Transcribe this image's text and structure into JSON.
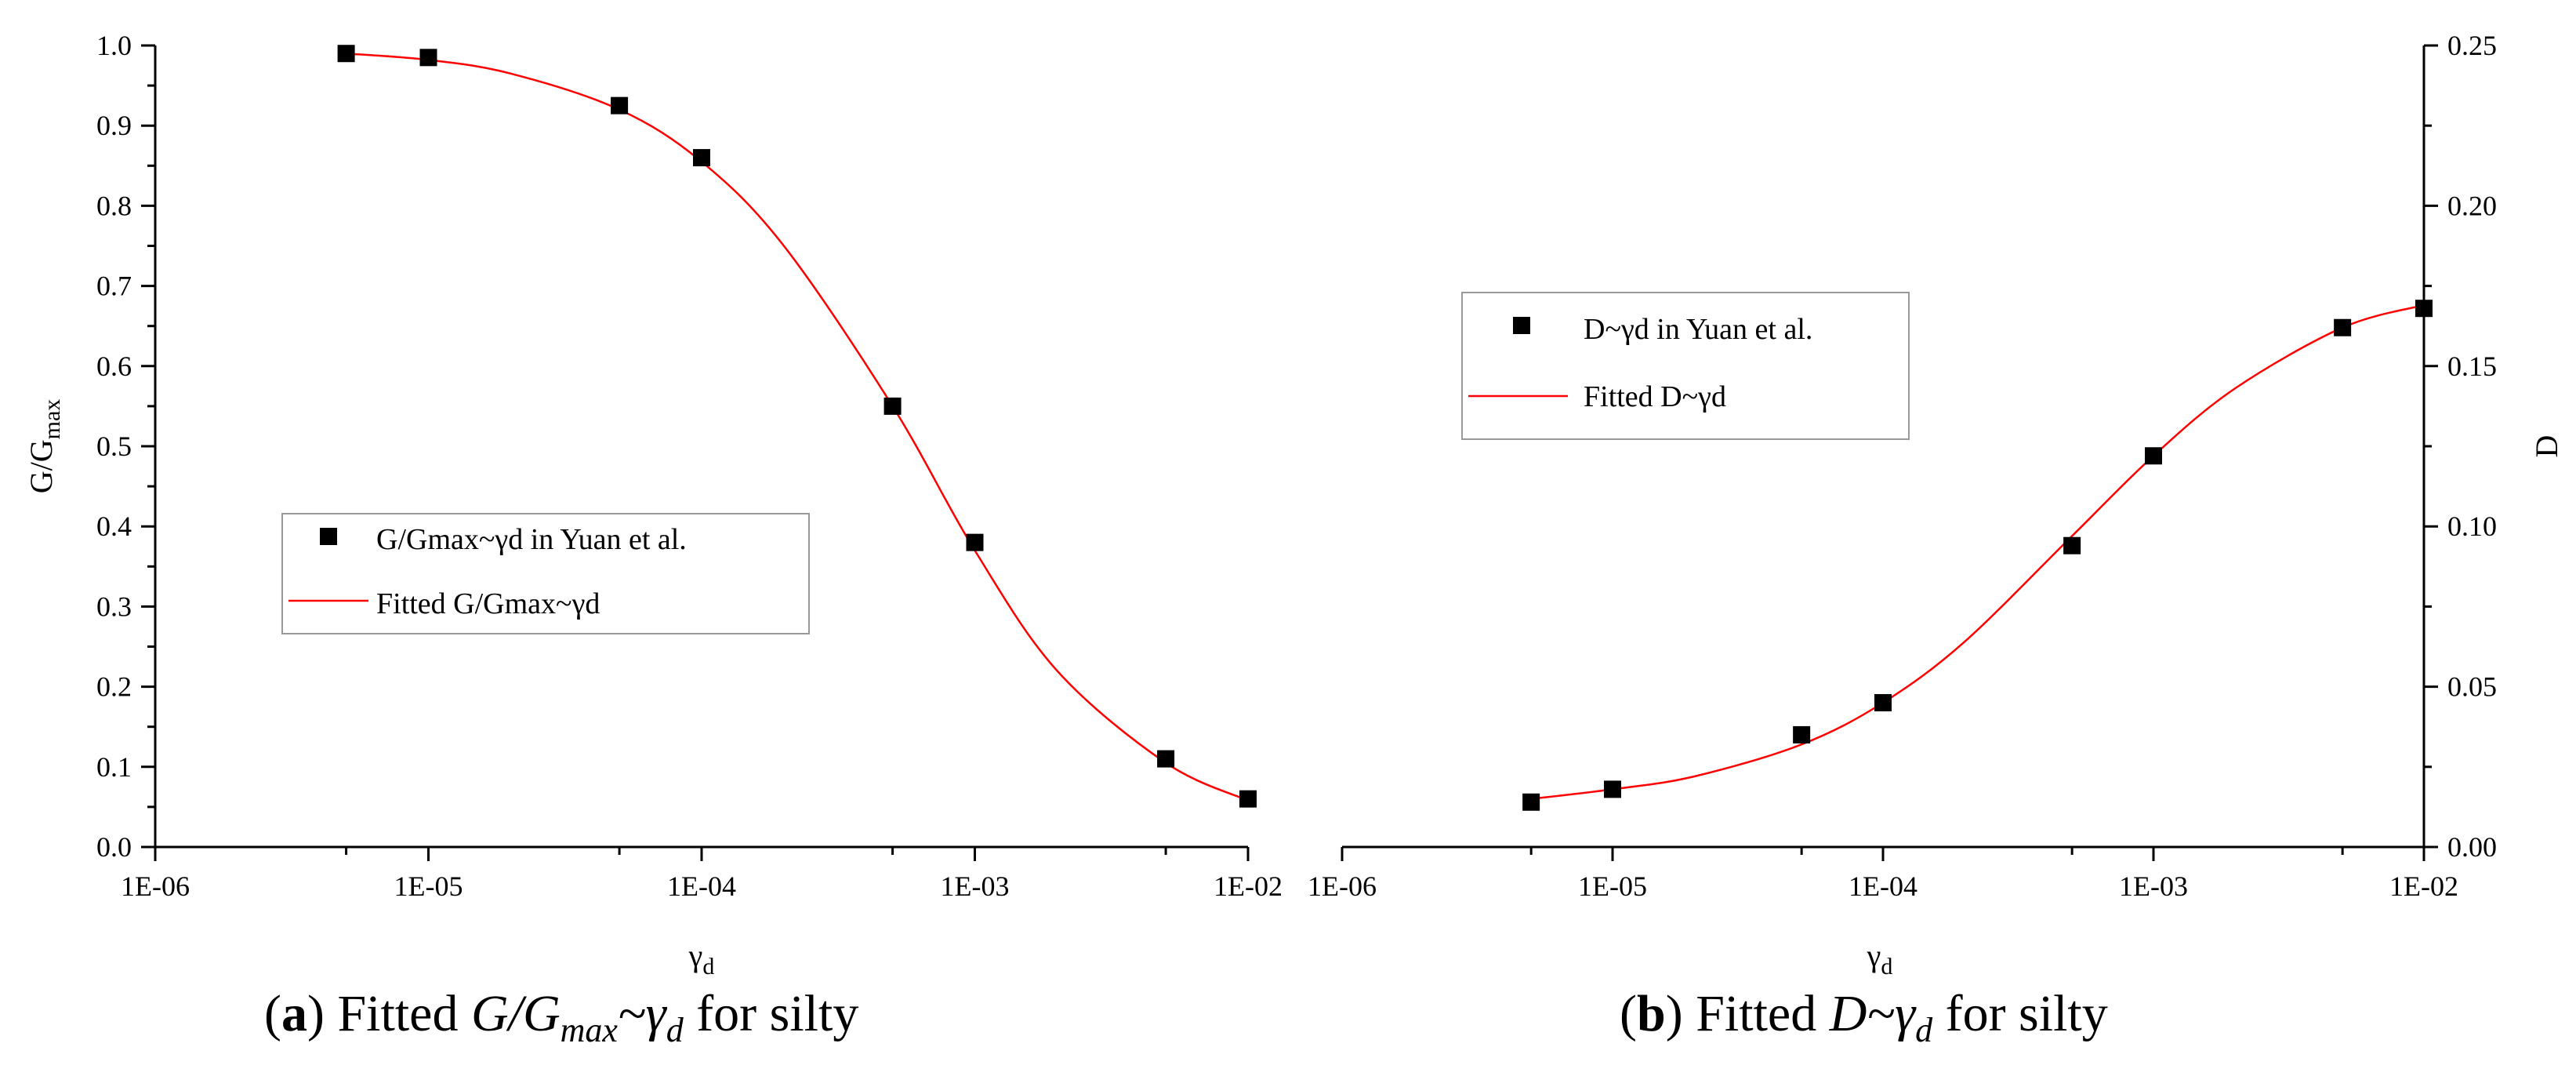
{
  "chart_data": [
    {
      "type": "scatter",
      "panel": "a",
      "x_scale": "log",
      "xlim": [
        1e-06,
        0.01
      ],
      "ylim": [
        0,
        1.0
      ],
      "x_ticks": [
        1e-06,
        1e-05,
        0.0001,
        0.001,
        0.01
      ],
      "x_tick_labels": [
        "1E-06",
        "1E-05",
        "1E-04",
        "1E-03",
        "1E-02"
      ],
      "y_ticks": [
        0,
        0.1,
        0.2,
        0.3,
        0.4,
        0.5,
        0.6,
        0.7,
        0.8,
        0.9,
        1.0
      ],
      "y_tick_labels": [
        "0.0",
        "0.1",
        "0.2",
        "0.3",
        "0.4",
        "0.5",
        "0.6",
        "0.7",
        "0.8",
        "0.9",
        "1.0"
      ],
      "xlabel": "γd",
      "ylabel": "G/Gmax",
      "y_axis_side": "left",
      "legend_position": "middle-left",
      "series": [
        {
          "name": "G/Gmax~γd in Yuan et al.",
          "kind": "points",
          "color": "#000000",
          "x": [
            5e-06,
            1e-05,
            5e-05,
            0.0001,
            0.0005,
            0.001,
            0.005,
            0.01
          ],
          "y": [
            0.99,
            0.985,
            0.925,
            0.86,
            0.55,
            0.38,
            0.11,
            0.06
          ]
        },
        {
          "name": "Fitted G/Gmax~γd",
          "kind": "line",
          "color": "#ff0000",
          "x": [
            5e-06,
            1e-05,
            2e-05,
            5e-05,
            0.0001,
            0.0002,
            0.0005,
            0.001,
            0.002,
            0.005,
            0.01
          ],
          "y": [
            0.99,
            0.982,
            0.965,
            0.92,
            0.855,
            0.75,
            0.55,
            0.37,
            0.22,
            0.105,
            0.058
          ]
        }
      ]
    },
    {
      "type": "scatter",
      "panel": "b",
      "x_scale": "log",
      "xlim": [
        1e-06,
        0.01
      ],
      "ylim": [
        0,
        0.25
      ],
      "x_ticks": [
        1e-06,
        1e-05,
        0.0001,
        0.001,
        0.01
      ],
      "x_tick_labels": [
        "1E-06",
        "1E-05",
        "1E-04",
        "1E-03",
        "1E-02"
      ],
      "y_ticks": [
        0,
        0.05,
        0.1,
        0.15,
        0.2,
        0.25
      ],
      "y_tick_labels": [
        "0.00",
        "0.05",
        "0.10",
        "0.15",
        "0.20",
        "0.25"
      ],
      "xlabel": "γd",
      "ylabel": "D",
      "y_axis_side": "right",
      "legend_position": "upper-middle",
      "series": [
        {
          "name": "D~γd in Yuan et al.",
          "kind": "points",
          "color": "#000000",
          "x": [
            5e-06,
            1e-05,
            5e-05,
            0.0001,
            0.0005,
            0.001,
            0.005,
            0.01
          ],
          "y": [
            0.014,
            0.018,
            0.035,
            0.045,
            0.094,
            0.122,
            0.162,
            0.168
          ]
        },
        {
          "name": "Fitted D~γd",
          "kind": "line",
          "color": "#ff0000",
          "x": [
            5e-06,
            1e-05,
            2e-05,
            5e-05,
            0.0001,
            0.0002,
            0.0005,
            0.001,
            0.002,
            0.005,
            0.01
          ],
          "y": [
            0.015,
            0.018,
            0.022,
            0.032,
            0.045,
            0.064,
            0.097,
            0.122,
            0.143,
            0.162,
            0.169
          ]
        }
      ]
    }
  ],
  "captions": {
    "a": {
      "label": "a",
      "text_before": "Fitted ",
      "math": "G/G",
      "math_sub": "max",
      "math_tail": "~γ",
      "math_tail_sub": "d",
      "text_after": " for silty"
    },
    "b": {
      "label": "b",
      "text_before": "Fitted ",
      "math": "D~γ",
      "math_sub": "d",
      "text_after": " for silty"
    }
  }
}
